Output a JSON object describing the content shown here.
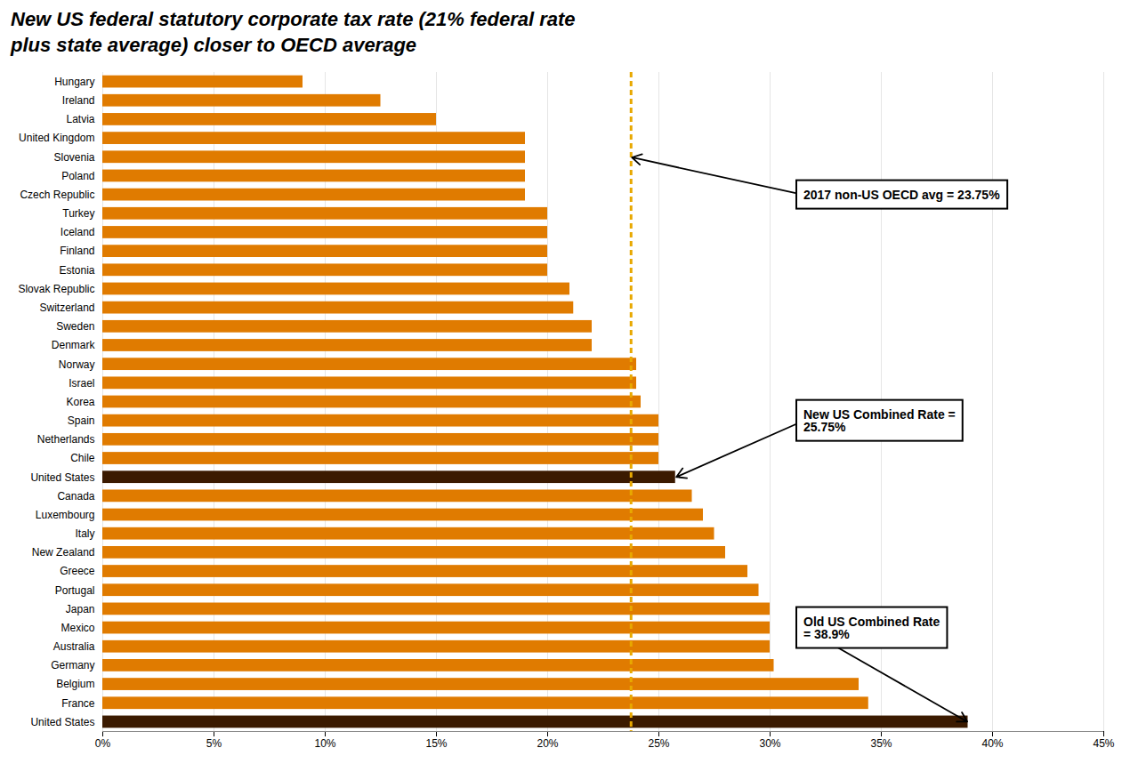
{
  "chart_data": {
    "type": "bar",
    "orientation": "horizontal",
    "title": "New US federal statutory corporate tax rate (21% federal rate\nplus state average) closer to OECD average",
    "categories": [
      "Hungary",
      "Ireland",
      "Latvia",
      "United Kingdom",
      "Slovenia",
      "Poland",
      "Czech Republic",
      "Turkey",
      "Iceland",
      "Finland",
      "Estonia",
      "Slovak Republic",
      "Switzerland",
      "Sweden",
      "Denmark",
      "Norway",
      "Israel",
      "Korea",
      "Spain",
      "Netherlands",
      "Chile",
      "United States",
      "Canada",
      "Luxembourg",
      "Italy",
      "New Zealand",
      "Greece",
      "Portugal",
      "Japan",
      "Mexico",
      "Australia",
      "Germany",
      "Belgium",
      "France",
      "United States"
    ],
    "values": [
      9,
      12.5,
      15,
      19,
      19,
      19,
      19,
      20,
      20,
      20,
      20,
      21,
      21.17,
      22,
      22,
      24,
      24,
      24.2,
      25,
      25,
      25,
      25.75,
      26.5,
      27,
      27.5,
      28,
      29,
      29.5,
      30,
      30,
      30,
      30.18,
      34,
      34.43,
      38.9
    ],
    "colors": [
      "#E07B00",
      "#E07B00",
      "#E07B00",
      "#E07B00",
      "#E07B00",
      "#E07B00",
      "#E07B00",
      "#E07B00",
      "#E07B00",
      "#E07B00",
      "#E07B00",
      "#E07B00",
      "#E07B00",
      "#E07B00",
      "#E07B00",
      "#E07B00",
      "#E07B00",
      "#E07B00",
      "#E07B00",
      "#E07B00",
      "#E07B00",
      "#3B1A00",
      "#E07B00",
      "#E07B00",
      "#E07B00",
      "#E07B00",
      "#E07B00",
      "#E07B00",
      "#E07B00",
      "#E07B00",
      "#E07B00",
      "#E07B00",
      "#E07B00",
      "#E07B00",
      "#3B1A00"
    ],
    "xlim": [
      0,
      45
    ],
    "xticks": [
      {
        "value": 0,
        "label": "0%"
      },
      {
        "value": 5,
        "label": "5%"
      },
      {
        "value": 10,
        "label": "10%"
      },
      {
        "value": 15,
        "label": "15%"
      },
      {
        "value": 20,
        "label": "20%"
      },
      {
        "value": 25,
        "label": "25%"
      },
      {
        "value": 30,
        "label": "30%"
      },
      {
        "value": 35,
        "label": "35%"
      },
      {
        "value": 40,
        "label": "40%"
      },
      {
        "value": 45,
        "label": "45%"
      }
    ],
    "grid": true,
    "reference_lines": [
      {
        "x": 23.75,
        "color": "#E8A800",
        "line_style": "dashed"
      }
    ],
    "annotations": [
      {
        "text": "2017 non-US OECD avg = 23.75%",
        "x": 23.75
      },
      {
        "text": "New US Combined Rate =\n25.75%",
        "x": 25.75
      },
      {
        "text": "Old US Combined Rate\n= 38.9%",
        "x": 38.9
      }
    ]
  }
}
